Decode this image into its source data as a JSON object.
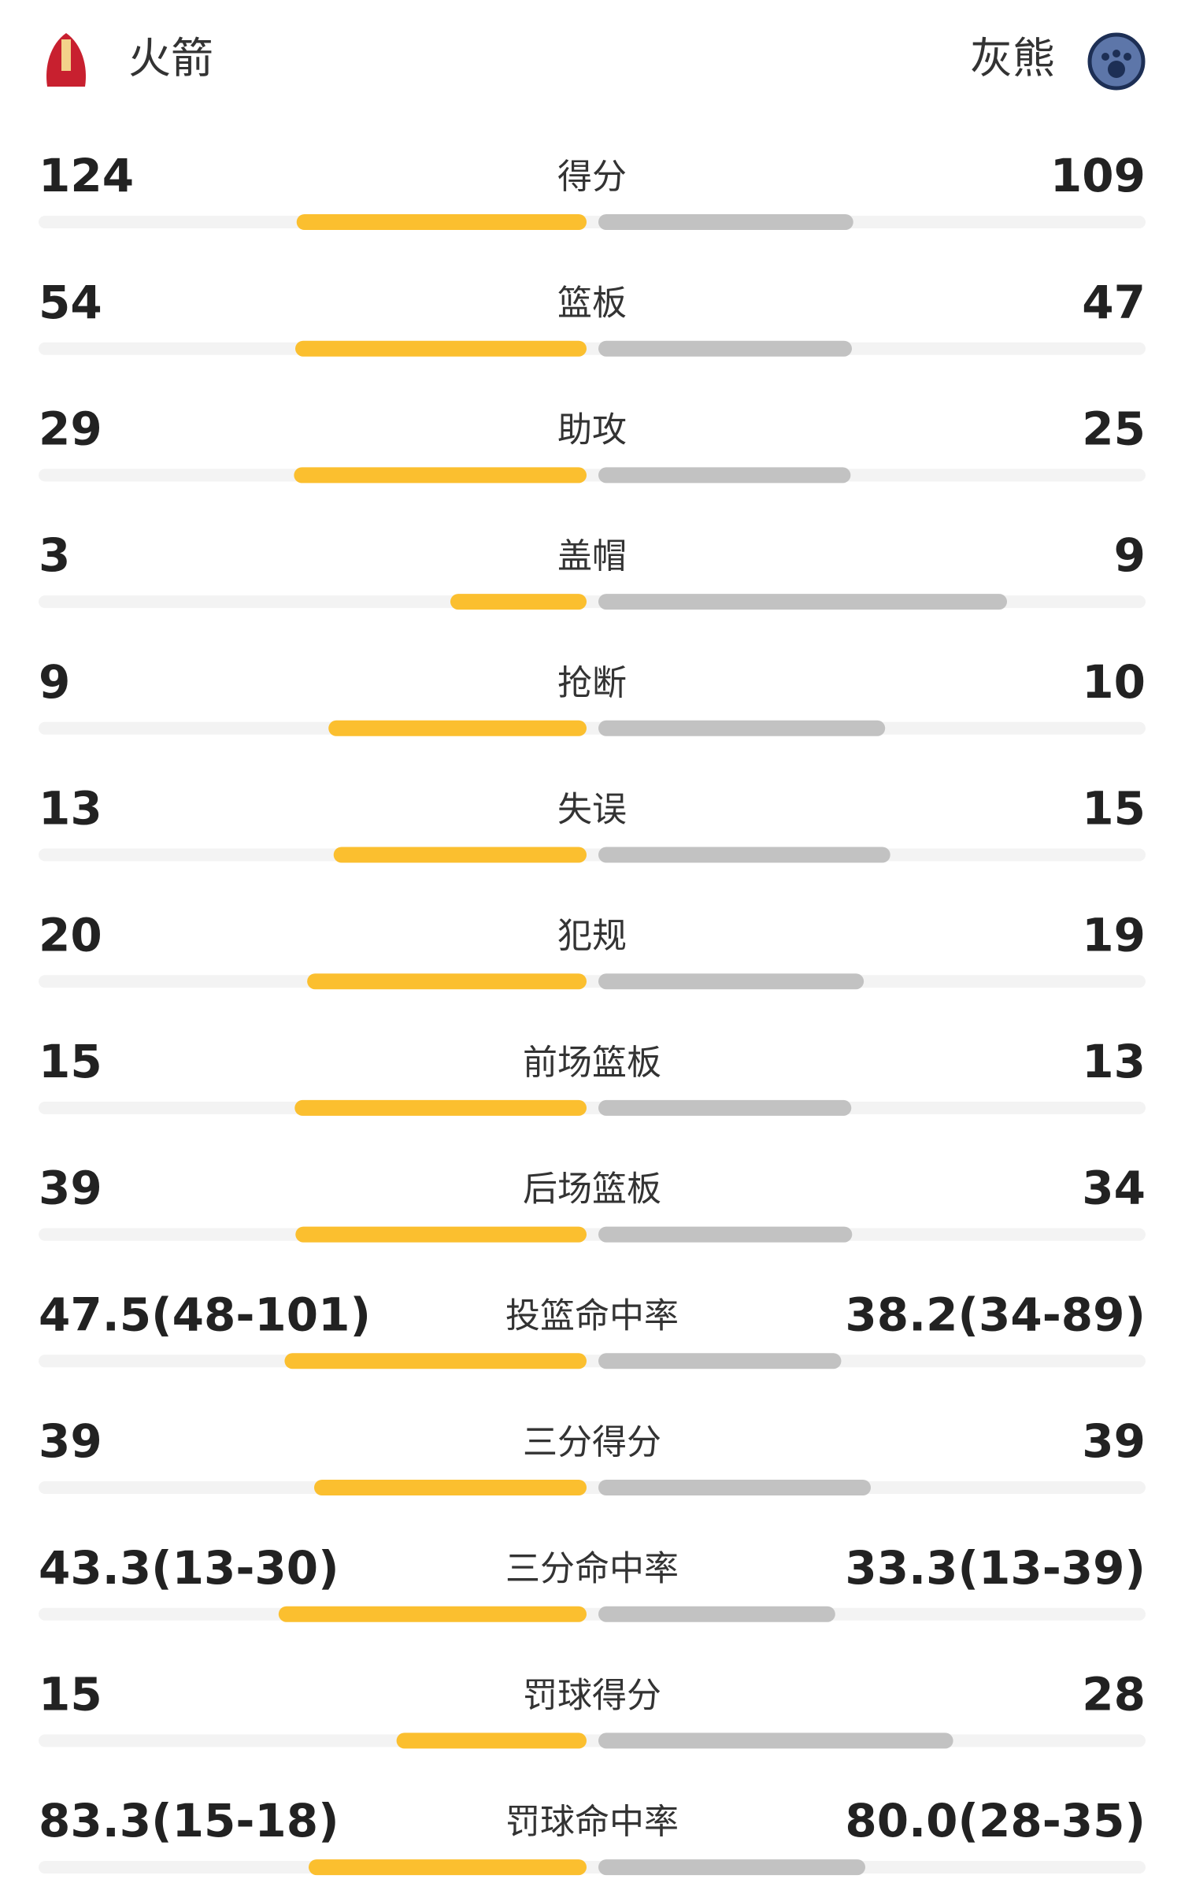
{
  "header": {
    "home_team": "火箭",
    "away_team": "灰熊"
  },
  "rows": [
    {
      "label": "得分",
      "home": 124,
      "away": 109
    },
    {
      "label": "篮板",
      "home": 54,
      "away": 47
    },
    {
      "label": "助攻",
      "home": 29,
      "away": 25
    },
    {
      "label": "盖帽",
      "home": 3,
      "away": 9
    },
    {
      "label": "抢断",
      "home": 9,
      "away": 10
    },
    {
      "label": "失误",
      "home": 13,
      "away": 15
    },
    {
      "label": "犯规",
      "home": 20,
      "away": 19
    },
    {
      "label": "前场篮板",
      "home": 15,
      "away": 13
    },
    {
      "label": "后场篮板",
      "home": 39,
      "away": 34
    },
    {
      "label": "投篮命中率",
      "home": 47.5,
      "home_label": "47.5(48-101)",
      "away": 38.2,
      "away_label": "38.2(34-89)"
    },
    {
      "label": "三分得分",
      "home": 39,
      "away": 39
    },
    {
      "label": "三分命中率",
      "home": 43.3,
      "home_label": "43.3(13-30)",
      "away": 33.3,
      "away_label": "33.3(13-39)"
    },
    {
      "label": "罚球得分",
      "home": 15,
      "away": 28
    },
    {
      "label": "罚球命中率",
      "home": 83.3,
      "home_label": "83.3(15-18)",
      "away": 80.0,
      "away_label": "80.0(28-35)"
    }
  ]
}
